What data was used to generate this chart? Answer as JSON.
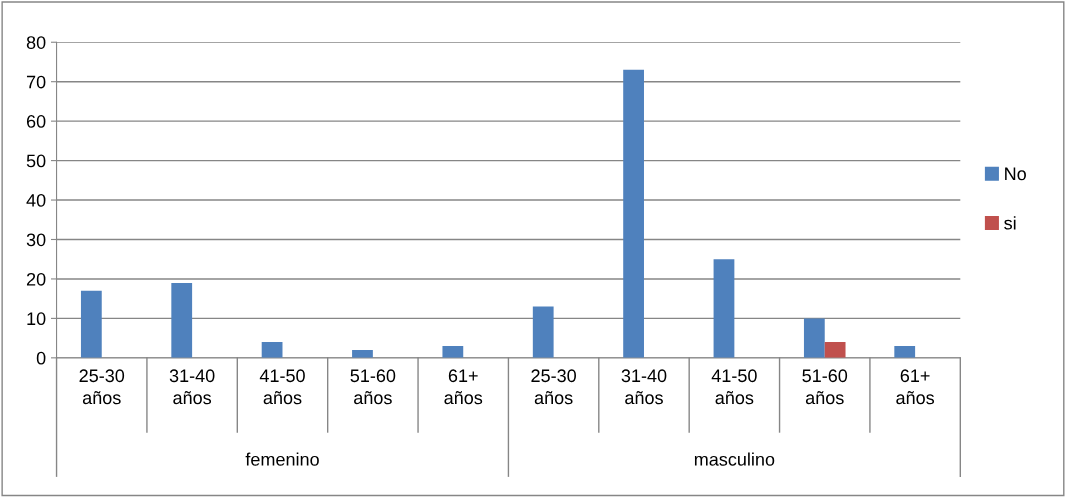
{
  "chart_data": {
    "type": "bar",
    "categories": [
      "25-30 años",
      "31-40 años",
      "41-50 años",
      "51-60 años",
      "61+ años",
      "25-30 años",
      "31-40 años",
      "41-50 años",
      "51-60 años",
      "61+ años"
    ],
    "series": [
      {
        "name": "No",
        "color": "#4f81bd",
        "values": [
          17,
          19,
          4,
          2,
          3,
          13,
          73,
          25,
          10,
          3
        ]
      },
      {
        "name": "si",
        "color": "#c0504d",
        "values": [
          null,
          null,
          null,
          null,
          null,
          null,
          null,
          null,
          4,
          null
        ]
      }
    ],
    "annotations": [
      "femenino",
      "masculino"
    ],
    "ylim": [
      0,
      80
    ],
    "yticks": [
      0,
      10,
      20,
      30,
      40,
      50,
      60,
      70,
      80
    ],
    "grid": "y",
    "legend": "right"
  }
}
